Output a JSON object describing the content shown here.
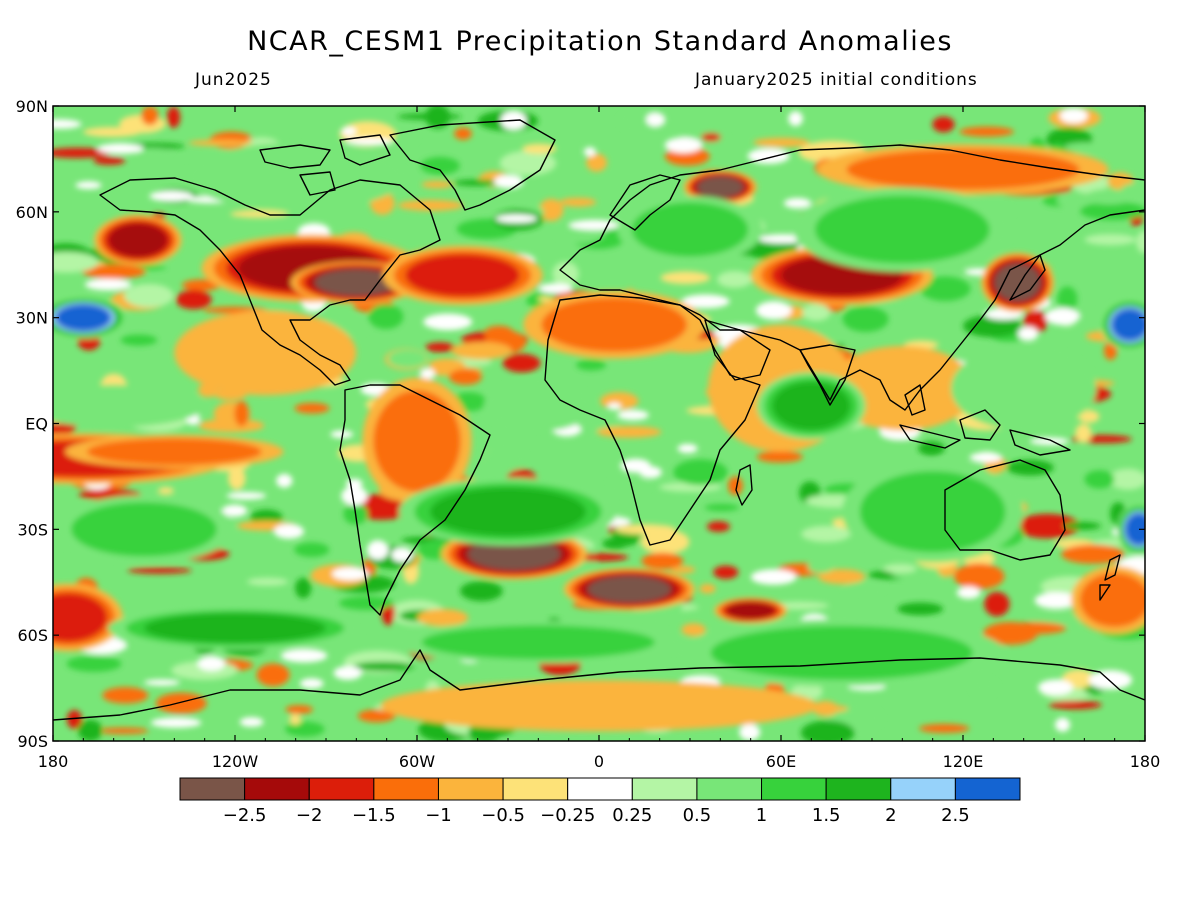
{
  "title": "NCAR_CESM1 Precipitation Standard Anomalies",
  "subtitle_left": "Jun2025",
  "subtitle_right": "January2025 initial conditions",
  "axes": {
    "lat_ticks": [
      "90N",
      "60N",
      "30N",
      "EQ",
      "30S",
      "60S",
      "90S"
    ],
    "lon_ticks": [
      "180",
      "120W",
      "60W",
      "0",
      "60E",
      "120E",
      "180"
    ],
    "lat_values": [
      90,
      60,
      30,
      0,
      -30,
      -60,
      -90
    ],
    "lon_values": [
      -180,
      -120,
      -60,
      0,
      60,
      120,
      180
    ]
  },
  "colorbar": {
    "colors": [
      "#7a5548",
      "#a50a0a",
      "#dc1e0a",
      "#fa6e0a",
      "#fbb43c",
      "#fde278",
      "#ffffff",
      "#b4f5a5",
      "#78e678",
      "#37d23c",
      "#1eb41e",
      "#96d2fa",
      "#1464d2"
    ],
    "labels": [
      "-2.5",
      "-2",
      "-1.5",
      "-1",
      "-0.5",
      "-0.25",
      "0.25",
      "0.5",
      "1",
      "1.5",
      "2",
      "2.5"
    ]
  },
  "anomaly_blobs": [
    {
      "lon": -95,
      "lat": 44,
      "rx": 30,
      "ry": 8,
      "level": -2
    },
    {
      "lon": -80,
      "lat": 40,
      "rx": 18,
      "ry": 5,
      "level": -2.5
    },
    {
      "lon": -152,
      "lat": 52,
      "rx": 12,
      "ry": 6,
      "level": -2
    },
    {
      "lon": -28,
      "lat": -37,
      "rx": 20,
      "ry": 6,
      "level": -2.5
    },
    {
      "lon": 10,
      "lat": -47,
      "rx": 18,
      "ry": 5,
      "level": -2.5
    },
    {
      "lon": 50,
      "lat": -53,
      "rx": 10,
      "ry": 3,
      "level": -2
    },
    {
      "lon": 138,
      "lat": 40,
      "rx": 10,
      "ry": 7,
      "level": -2.5
    },
    {
      "lon": 80,
      "lat": 42,
      "rx": 25,
      "ry": 7,
      "level": -2
    },
    {
      "lon": 40,
      "lat": 67,
      "rx": 10,
      "ry": 4,
      "level": -2.5
    },
    {
      "lon": -170,
      "lat": -10,
      "rx": 40,
      "ry": 6,
      "level": -1.5
    },
    {
      "lon": -140,
      "lat": -8,
      "rx": 30,
      "ry": 4,
      "level": -1
    },
    {
      "lon": -45,
      "lat": 42,
      "rx": 22,
      "ry": 7,
      "level": -1.5
    },
    {
      "lon": 5,
      "lat": 28,
      "rx": 25,
      "ry": 8,
      "level": -1
    },
    {
      "lon": 60,
      "lat": 10,
      "rx": 20,
      "ry": 15,
      "level": -0.5
    },
    {
      "lon": -60,
      "lat": -5,
      "rx": 15,
      "ry": 15,
      "level": -1
    },
    {
      "lon": -110,
      "lat": 20,
      "rx": 25,
      "ry": 10,
      "level": -0.5
    },
    {
      "lon": -175,
      "lat": -55,
      "rx": 15,
      "ry": 8,
      "level": -1.5
    },
    {
      "lon": 170,
      "lat": -50,
      "rx": 12,
      "ry": 8,
      "level": -1
    },
    {
      "lon": 0,
      "lat": -80,
      "rx": 60,
      "ry": 6,
      "level": -0.5
    },
    {
      "lon": 120,
      "lat": 72,
      "rx": 40,
      "ry": 6,
      "level": -1
    },
    {
      "lon": 100,
      "lat": 10,
      "rx": 20,
      "ry": 10,
      "level": -0.5
    },
    {
      "lon": -170,
      "lat": 30,
      "rx": 12,
      "ry": 5,
      "level": 2.5
    },
    {
      "lon": 175,
      "lat": 28,
      "rx": 8,
      "ry": 6,
      "level": 2.5
    },
    {
      "lon": 178,
      "lat": -30,
      "rx": 6,
      "ry": 6,
      "level": 2.5
    },
    {
      "lon": -30,
      "lat": -25,
      "rx": 30,
      "ry": 8,
      "level": 1.5
    },
    {
      "lon": 110,
      "lat": -25,
      "rx": 25,
      "ry": 12,
      "level": 1
    },
    {
      "lon": 80,
      "lat": -65,
      "rx": 45,
      "ry": 8,
      "level": 1
    },
    {
      "lon": 100,
      "lat": 55,
      "rx": 30,
      "ry": 10,
      "level": 1
    },
    {
      "lon": -150,
      "lat": -30,
      "rx": 25,
      "ry": 8,
      "level": 1
    },
    {
      "lon": -20,
      "lat": -62,
      "rx": 40,
      "ry": 5,
      "level": 1
    },
    {
      "lon": 30,
      "lat": 55,
      "rx": 20,
      "ry": 8,
      "level": 1
    },
    {
      "lon": -120,
      "lat": -58,
      "rx": 35,
      "ry": 5,
      "level": 1.5
    },
    {
      "lon": 70,
      "lat": 5,
      "rx": 15,
      "ry": 8,
      "level": 1.5
    },
    {
      "lon": -20,
      "lat": 5,
      "rx": 15,
      "ry": 6,
      "level": 0.5
    },
    {
      "lon": -100,
      "lat": 70,
      "rx": 30,
      "ry": 8,
      "level": 0.5
    },
    {
      "lon": 140,
      "lat": 10,
      "rx": 20,
      "ry": 10,
      "level": 0.5
    },
    {
      "lon": -160,
      "lat": 5,
      "rx": 25,
      "ry": 5,
      "level": 0.5
    }
  ]
}
